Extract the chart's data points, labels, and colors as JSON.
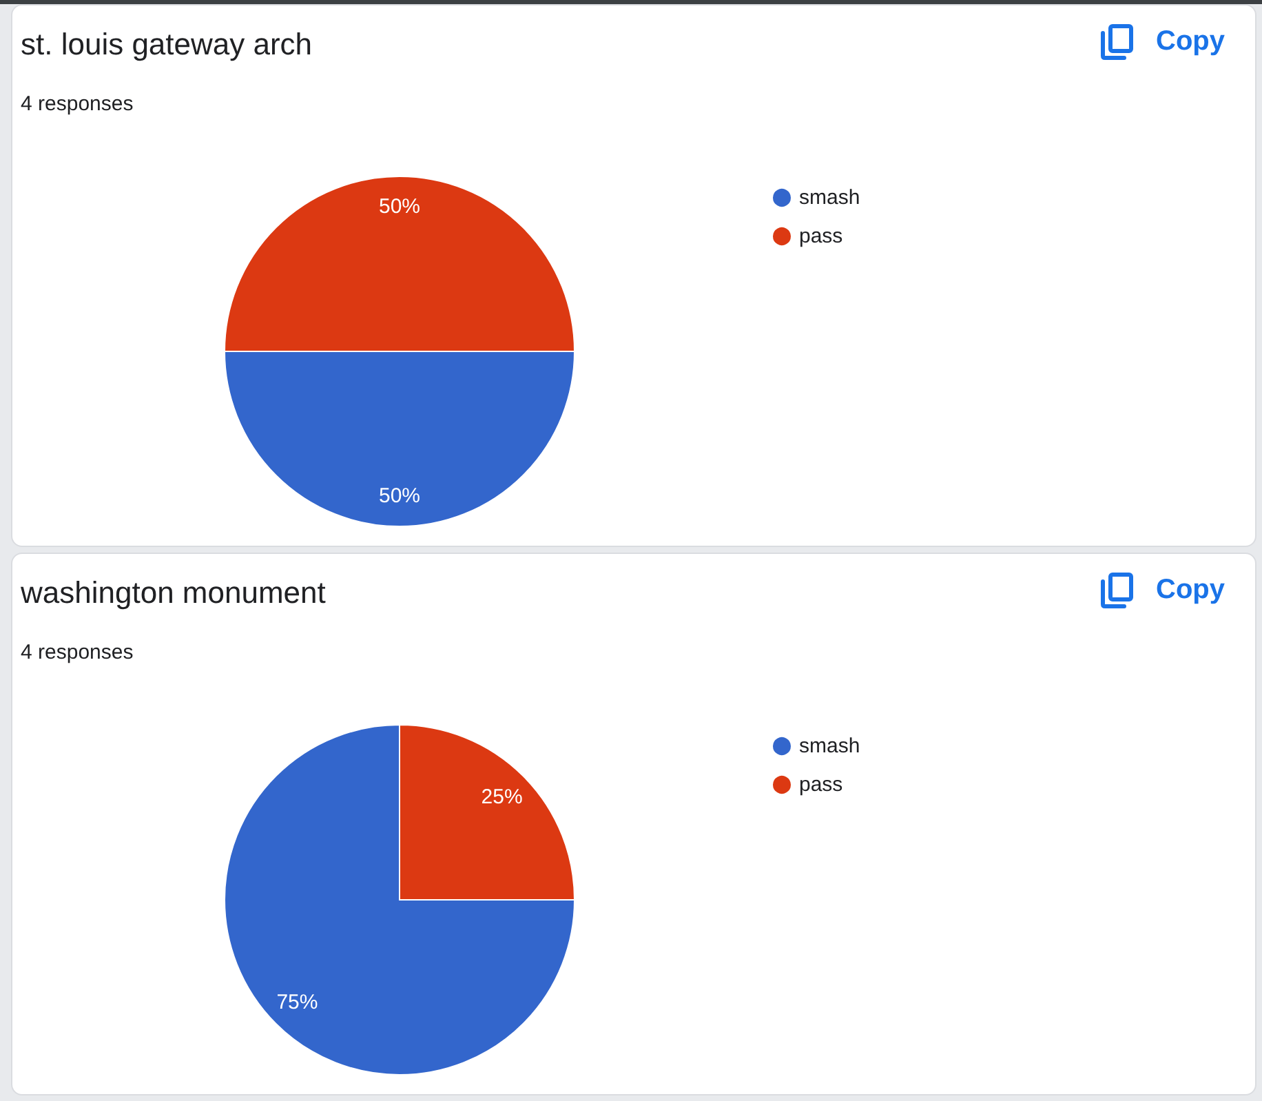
{
  "chart_data": [
    {
      "type": "pie",
      "title": "st. louis gateway arch",
      "subtitle": "4 responses",
      "categories": [
        "smash",
        "pass"
      ],
      "values": [
        50,
        50
      ],
      "colors": [
        "#3366cc",
        "#dc3912"
      ],
      "value_labels": [
        "50%",
        "50%"
      ],
      "legend": "top right",
      "annotations": [
        "Copy"
      ]
    },
    {
      "type": "pie",
      "title": "washington monument",
      "subtitle": "4 responses",
      "categories": [
        "smash",
        "pass"
      ],
      "values": [
        75,
        25
      ],
      "colors": [
        "#3366cc",
        "#dc3912"
      ],
      "value_labels": [
        "75%",
        "25%"
      ],
      "legend": "top right",
      "annotations": [
        "Copy"
      ]
    }
  ]
}
